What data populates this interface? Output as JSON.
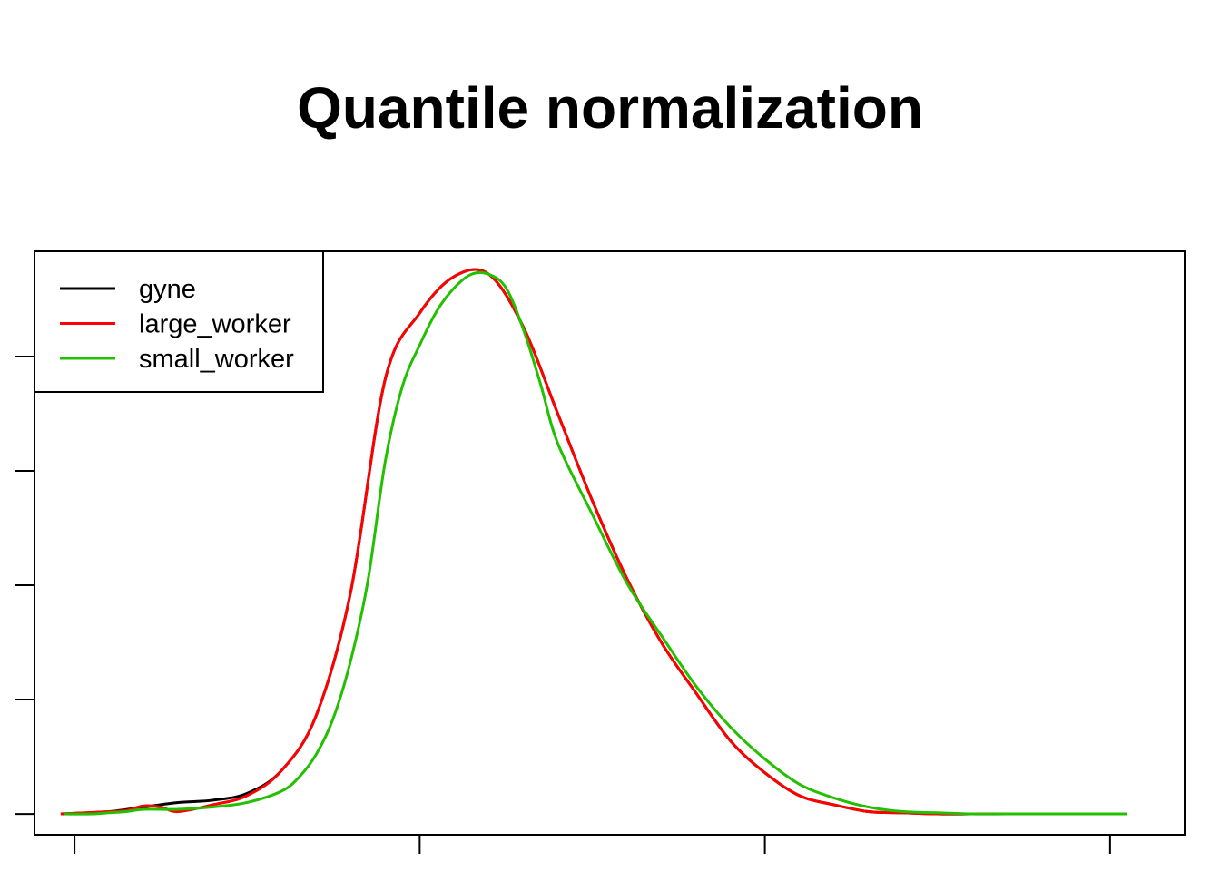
{
  "chart_data": {
    "type": "line",
    "title": "Quantile normalization",
    "xlabel": "",
    "ylabel": "",
    "xlim": [
      -1.16,
      32.16
    ],
    "ylim": [
      -0.091,
      2.46
    ],
    "x_ticks": [
      0,
      10,
      20,
      30
    ],
    "y_ticks": [
      0,
      0.5,
      1.0,
      1.5,
      2.0
    ],
    "tick_labels_shown": false,
    "grid": false,
    "legend_position": "top-left",
    "colors": {
      "gyne": "#000000",
      "large_worker": "#ff0000",
      "small_worker": "#22c000"
    },
    "series": [
      {
        "name": "gyne",
        "color": "#000000",
        "x": [
          -0.4,
          1.0,
          2.0,
          3.0,
          4.0,
          5.0,
          6.0,
          7.0,
          8.0,
          9.0,
          10.0,
          11.0,
          12.0,
          13.0,
          14.0,
          15.0,
          16.0,
          17.0,
          18.0,
          19.0,
          20.0,
          21.0,
          22.0,
          23.0,
          24.0,
          25.0,
          26.0,
          27.0,
          28.0,
          29.0,
          30.0,
          30.5
        ],
        "y": [
          0.0,
          0.01,
          0.03,
          0.05,
          0.06,
          0.09,
          0.19,
          0.43,
          0.97,
          1.9,
          2.19,
          2.35,
          2.36,
          2.13,
          1.75,
          1.37,
          1.03,
          0.75,
          0.53,
          0.32,
          0.18,
          0.08,
          0.04,
          0.01,
          0.005,
          0.0,
          0.0,
          0.0,
          0.0,
          0.0,
          0.0,
          0.0
        ]
      },
      {
        "name": "large_worker",
        "color": "#ff0000",
        "x": [
          -0.4,
          1.0,
          1.5,
          2.0,
          2.5,
          3.0,
          4.0,
          5.0,
          6.0,
          7.0,
          8.0,
          9.0,
          10.0,
          11.0,
          12.0,
          13.0,
          14.0,
          15.0,
          16.0,
          17.0,
          18.0,
          19.0,
          20.0,
          21.0,
          22.0,
          23.0,
          24.0,
          25.0,
          26.0,
          27.0,
          28.0,
          29.0,
          30.0,
          30.5
        ],
        "y": [
          0.0,
          0.01,
          0.015,
          0.035,
          0.03,
          0.01,
          0.04,
          0.08,
          0.19,
          0.43,
          0.97,
          1.9,
          2.19,
          2.35,
          2.36,
          2.13,
          1.75,
          1.37,
          1.03,
          0.75,
          0.53,
          0.32,
          0.18,
          0.08,
          0.04,
          0.01,
          0.005,
          0.0,
          0.0,
          0.0,
          0.0,
          0.0,
          0.0,
          0.0
        ]
      },
      {
        "name": "small_worker",
        "color": "#22c000",
        "x": [
          -0.3,
          0.5,
          1.0,
          1.5,
          2.0,
          3.0,
          4.0,
          5.0,
          6.0,
          6.5,
          7.0,
          7.5,
          8.0,
          8.5,
          9.0,
          9.5,
          10.0,
          10.5,
          11.0,
          11.5,
          12.0,
          12.5,
          13.0,
          13.5,
          14.0,
          15.0,
          16.0,
          17.0,
          18.0,
          19.0,
          20.0,
          21.0,
          22.0,
          23.0,
          24.0,
          25.0,
          26.0,
          27.0,
          28.0,
          29.0,
          30.0,
          30.5
        ],
        "y": [
          0.0,
          0.0,
          0.005,
          0.01,
          0.02,
          0.02,
          0.03,
          0.05,
          0.1,
          0.16,
          0.26,
          0.42,
          0.67,
          1.02,
          1.54,
          1.87,
          2.05,
          2.2,
          2.3,
          2.36,
          2.36,
          2.3,
          2.12,
          1.88,
          1.62,
          1.31,
          1.01,
          0.78,
          0.56,
          0.38,
          0.24,
          0.13,
          0.07,
          0.03,
          0.01,
          0.005,
          0.0,
          0.0,
          0.0,
          0.0,
          0.0,
          0.0
        ]
      }
    ]
  }
}
